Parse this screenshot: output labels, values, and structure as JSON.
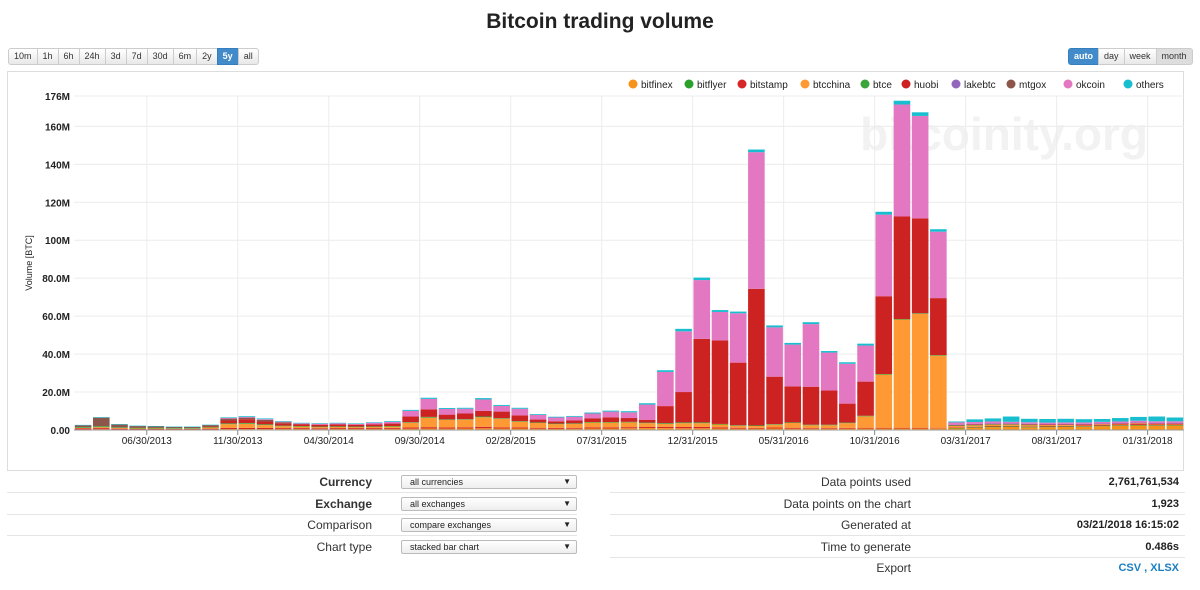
{
  "title": "Bitcoin trading volume",
  "range_buttons": [
    "10m",
    "1h",
    "6h",
    "24h",
    "3d",
    "7d",
    "30d",
    "6m",
    "2y",
    "5y",
    "all"
  ],
  "range_active": "5y",
  "grouping_buttons": [
    "auto",
    "day",
    "week",
    "month"
  ],
  "grouping_active": "auto",
  "grouping_pressed": "month",
  "watermark": "bitcoinity.org",
  "chart_data": {
    "type": "bar",
    "stacked": true,
    "ylabel": "Volume [BTC]",
    "ylim": [
      0,
      176000000
    ],
    "ytick_values": [
      0,
      20000000,
      40000000,
      60000000,
      80000000,
      100000000,
      120000000,
      140000000,
      160000000,
      176000000
    ],
    "ytick_labels": [
      "0.00",
      "20.0M",
      "40.0M",
      "60.0M",
      "80.0M",
      "100M",
      "120M",
      "140M",
      "160M",
      "176M"
    ],
    "xtick_labels": [
      "06/30/2013",
      "11/30/2013",
      "04/30/2014",
      "09/30/2014",
      "02/28/2015",
      "07/31/2015",
      "12/31/2015",
      "05/31/2016",
      "10/31/2016",
      "03/31/2017",
      "08/31/2017",
      "01/31/2018"
    ],
    "xtick_index": [
      4,
      9,
      14,
      19,
      24,
      29,
      34,
      39,
      44,
      49,
      54,
      59
    ],
    "series_names": [
      "bitfinex",
      "bitflyer",
      "bitstamp",
      "btcchina",
      "btce",
      "huobi",
      "lakebtc",
      "mtgox",
      "okcoin",
      "others"
    ],
    "series_colors": [
      "#f7931a",
      "#2ca02c",
      "#d62728",
      "#ff9933",
      "#3aa53a",
      "#cc2222",
      "#9467bd",
      "#8c564b",
      "#e377c2",
      "#17becf"
    ],
    "legend_position": "top-right",
    "categories": [
      "2013-03",
      "2013-04",
      "2013-05",
      "2013-06",
      "2013-07",
      "2013-08",
      "2013-09",
      "2013-10",
      "2013-11",
      "2013-12",
      "2014-01",
      "2014-02",
      "2014-03",
      "2014-04",
      "2014-05",
      "2014-06",
      "2014-07",
      "2014-08",
      "2014-09",
      "2014-10",
      "2014-11",
      "2014-12",
      "2015-01",
      "2015-02",
      "2015-03",
      "2015-04",
      "2015-05",
      "2015-06",
      "2015-07",
      "2015-08",
      "2015-09",
      "2015-10",
      "2015-11",
      "2015-12",
      "2016-01",
      "2016-02",
      "2016-03",
      "2016-04",
      "2016-05",
      "2016-06",
      "2016-07",
      "2016-08",
      "2016-09",
      "2016-10",
      "2016-11",
      "2016-12",
      "2017-01",
      "2017-02",
      "2017-03",
      "2017-04",
      "2017-05",
      "2017-06",
      "2017-07",
      "2017-08",
      "2017-09",
      "2017-10",
      "2017-11",
      "2017-12",
      "2018-01",
      "2018-02",
      "2018-03"
    ],
    "series": [
      {
        "name": "bitfinex",
        "values": [
          0.3,
          0.4,
          0.3,
          0.2,
          0.2,
          0.2,
          0.2,
          0.3,
          0.5,
          0.5,
          0.5,
          0.5,
          0.5,
          0.4,
          0.5,
          0.5,
          0.5,
          0.6,
          0.7,
          0.8,
          0.7,
          0.8,
          0.9,
          0.8,
          0.8,
          0.7,
          0.6,
          0.7,
          0.8,
          0.8,
          0.9,
          1.0,
          1.0,
          0.9,
          0.9,
          0.8,
          0.7,
          0.7,
          0.8,
          0.7,
          0.6,
          0.6,
          0.7,
          0.8,
          0.8,
          0.8,
          0.8,
          0.9,
          1.0,
          1.2,
          1.5,
          1.6,
          1.4,
          1.5,
          1.6,
          1.7,
          2.0,
          2.2,
          2.4,
          2.2,
          2.3
        ]
      },
      {
        "name": "bitflyer",
        "values": [
          0,
          0,
          0,
          0,
          0,
          0,
          0,
          0,
          0,
          0,
          0,
          0,
          0,
          0,
          0,
          0,
          0,
          0,
          0,
          0,
          0,
          0,
          0,
          0,
          0,
          0,
          0,
          0,
          0,
          0,
          0,
          0,
          0,
          0,
          0,
          0,
          0,
          0,
          0,
          0,
          0,
          0,
          0,
          0,
          0,
          0,
          0,
          0,
          0.1,
          0.2,
          0.3,
          0.3,
          0.3,
          0.3,
          0.3,
          0.3,
          0.3,
          0.3,
          0.3,
          0.3,
          0.3
        ]
      },
      {
        "name": "bitstamp",
        "values": [
          0.5,
          0.6,
          0.4,
          0.3,
          0.3,
          0.3,
          0.3,
          0.4,
          0.6,
          0.6,
          0.6,
          0.5,
          0.5,
          0.5,
          0.5,
          0.5,
          0.5,
          0.5,
          0.6,
          0.7,
          0.6,
          0.6,
          0.8,
          0.6,
          0.6,
          0.5,
          0.5,
          0.5,
          0.6,
          0.6,
          0.6,
          0.6,
          0.7,
          0.7,
          0.7,
          0.6,
          0.5,
          0.4,
          0.5,
          0.5,
          0.4,
          0.4,
          0.4,
          0.4,
          0.4,
          0.4,
          0.4,
          0.3,
          0.3,
          0.3,
          0.3,
          0.3,
          0.3,
          0.3,
          0.3,
          0.4,
          0.4,
          0.4,
          0.5,
          0.4,
          0.3
        ]
      },
      {
        "name": "btcchina",
        "values": [
          0.3,
          0.5,
          0.4,
          0.3,
          0.3,
          0.2,
          0.2,
          0.6,
          2.0,
          2.2,
          1.5,
          1.0,
          0.8,
          0.6,
          0.6,
          0.5,
          0.6,
          0.7,
          2.5,
          5.0,
          4.0,
          4.0,
          5.0,
          4.5,
          3.0,
          2.5,
          2.0,
          2.0,
          2.5,
          2.5,
          2.5,
          2.0,
          1.5,
          2.0,
          2.0,
          1.5,
          1.0,
          1.0,
          1.5,
          2.5,
          1.5,
          1.5,
          2.5,
          6.0,
          28.0,
          57.0,
          60.0,
          38.0,
          0.8,
          0.8,
          0.7,
          0.6,
          0.6,
          0.5,
          0.5,
          0.3,
          0.3,
          0.3,
          0.3,
          0.3,
          0.3
        ]
      },
      {
        "name": "btce",
        "values": [
          0.4,
          0.5,
          0.3,
          0.3,
          0.3,
          0.3,
          0.3,
          0.3,
          0.4,
          0.4,
          0.4,
          0.3,
          0.3,
          0.3,
          0.3,
          0.3,
          0.3,
          0.3,
          0.3,
          0.4,
          0.3,
          0.3,
          0.4,
          0.3,
          0.3,
          0.3,
          0.3,
          0.3,
          0.3,
          0.3,
          0.3,
          0.3,
          0.4,
          0.4,
          0.4,
          0.3,
          0.3,
          0.3,
          0.3,
          0.3,
          0.3,
          0.3,
          0.3,
          0.3,
          0.3,
          0.3,
          0.3,
          0.3,
          0.2,
          0.2,
          0.2,
          0.2,
          0.2,
          0.0,
          0.0,
          0.0,
          0.0,
          0.0,
          0.0,
          0.0,
          0.0
        ]
      },
      {
        "name": "huobi",
        "values": [
          0,
          0,
          0,
          0,
          0,
          0,
          0,
          0.2,
          1.5,
          2.0,
          1.5,
          1.2,
          1.0,
          1.0,
          1.0,
          1.0,
          1.0,
          1.3,
          3.0,
          4.0,
          2.5,
          3.0,
          3.0,
          3.5,
          3.0,
          1.5,
          1.2,
          1.5,
          2.0,
          2.5,
          2.0,
          1.5,
          9.0,
          16.0,
          44.0,
          44.0,
          33.0,
          72.0,
          25.0,
          19.0,
          20.0,
          18.0,
          10.0,
          18.0,
          41.0,
          54.0,
          50.0,
          30.0,
          0.3,
          0.4,
          0.4,
          0.4,
          0.4,
          0.4,
          0.4,
          0.4,
          0.4,
          0.3,
          0.3,
          0.3,
          0.3
        ]
      },
      {
        "name": "lakebtc",
        "values": [
          0,
          0,
          0,
          0,
          0,
          0,
          0,
          0,
          0,
          0,
          0,
          0,
          0,
          0,
          0,
          0,
          0,
          0,
          0,
          0,
          0,
          0,
          0,
          0,
          0,
          0,
          0,
          0,
          0,
          0,
          0,
          0,
          0,
          0,
          0,
          0,
          0,
          0,
          0,
          0,
          0,
          0,
          0,
          0,
          0,
          0,
          0,
          0,
          0.1,
          0.1,
          0.1,
          0.1,
          0.1,
          0.1,
          0.1,
          0.1,
          0.1,
          0.1,
          0.1,
          0.1,
          0.1
        ]
      },
      {
        "name": "mtgox",
        "values": [
          1.0,
          4.5,
          1.5,
          1.0,
          0.8,
          0.6,
          0.6,
          0.8,
          1.0,
          0.8,
          0.8,
          0.6,
          0,
          0,
          0,
          0,
          0,
          0,
          0,
          0,
          0,
          0,
          0,
          0,
          0,
          0,
          0,
          0,
          0,
          0,
          0,
          0,
          0,
          0,
          0,
          0,
          0,
          0,
          0,
          0,
          0,
          0,
          0,
          0,
          0,
          0,
          0,
          0,
          0,
          0,
          0,
          0,
          0,
          0,
          0,
          0,
          0,
          0,
          0,
          0,
          0
        ]
      },
      {
        "name": "okcoin",
        "values": [
          0,
          0,
          0,
          0,
          0,
          0,
          0,
          0,
          0.4,
          0.4,
          0.4,
          0.3,
          0.4,
          0.5,
          0.6,
          0.4,
          0.9,
          0.9,
          3.0,
          5.5,
          3.0,
          2.5,
          6.0,
          3.0,
          3.5,
          2.5,
          2.0,
          2.0,
          2.5,
          3.0,
          3.0,
          8.0,
          18.0,
          32.0,
          31.0,
          15.0,
          26.0,
          72.0,
          26.0,
          22.0,
          33.0,
          20.0,
          21.0,
          19.0,
          43.0,
          59.0,
          54.0,
          35.0,
          1.2,
          1.0,
          1.0,
          0.8,
          0.8,
          0.8,
          0.8,
          0.8,
          0.8,
          0.9,
          1.0,
          1.0,
          1.0
        ]
      },
      {
        "name": "others",
        "values": [
          0.2,
          0.3,
          0.2,
          0.2,
          0.2,
          0.2,
          0.2,
          0.2,
          0.3,
          0.4,
          0.4,
          0.3,
          0.3,
          0.3,
          0.3,
          0.3,
          0.3,
          0.4,
          0.5,
          0.6,
          0.5,
          0.5,
          0.7,
          0.5,
          0.5,
          0.4,
          0.4,
          0.4,
          0.5,
          0.5,
          0.6,
          0.7,
          0.9,
          1.3,
          1.3,
          1.0,
          0.9,
          1.4,
          1.0,
          0.9,
          1.0,
          0.8,
          0.8,
          1.0,
          1.5,
          2.0,
          1.9,
          1.3,
          0.5,
          1.4,
          1.6,
          2.8,
          1.8,
          1.9,
          1.9,
          1.7,
          1.5,
          1.8,
          2.0,
          2.5,
          2.0
        ]
      }
    ],
    "value_unit": "M BTC"
  },
  "controls": {
    "currency": {
      "label": "Currency",
      "value": "all currencies"
    },
    "exchange": {
      "label": "Exchange",
      "value": "all exchanges"
    },
    "comparison": {
      "label": "Comparison",
      "value": "compare exchanges"
    },
    "chart_type": {
      "label": "Chart type",
      "value": "stacked bar chart"
    }
  },
  "info": {
    "data_points_used": {
      "label": "Data points used",
      "value": "2,761,761,534"
    },
    "data_points_chart": {
      "label": "Data points on the chart",
      "value": "1,923"
    },
    "generated_at": {
      "label": "Generated at",
      "value": "03/21/2018 16:15:02"
    },
    "time_to_generate": {
      "label": "Time to generate",
      "value": "0.486s"
    },
    "export": {
      "label": "Export",
      "csv": "CSV",
      "sep": " , ",
      "xlsx": "XLSX"
    }
  }
}
